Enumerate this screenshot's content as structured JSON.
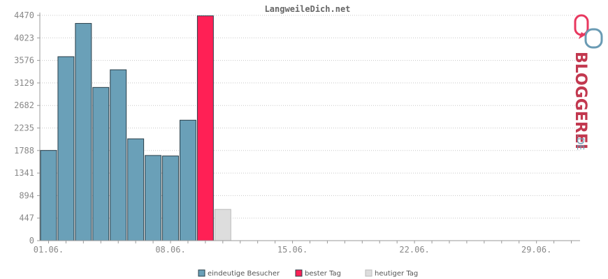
{
  "chart_data": {
    "type": "bar",
    "title": "LangweileDich.net",
    "ylim": [
      0,
      4470
    ],
    "yticks": [
      "0",
      "447",
      "894",
      "1341",
      "1788",
      "2235",
      "2682",
      "3129",
      "3576",
      "4023",
      "4470"
    ],
    "xtick_labels": [
      "01.06.",
      "08.06.",
      "15.06.",
      "22.06.",
      "29.06."
    ],
    "days": 31,
    "grid": true,
    "legend_placement": "bottom",
    "series": [
      {
        "name": "eindeutige Besucher",
        "color": "#6aa0b8",
        "points": [
          {
            "day": 1,
            "value": 1790
          },
          {
            "day": 2,
            "value": 3650
          },
          {
            "day": 3,
            "value": 4310
          },
          {
            "day": 4,
            "value": 3040
          },
          {
            "day": 5,
            "value": 3390
          },
          {
            "day": 6,
            "value": 2020
          },
          {
            "day": 7,
            "value": 1690
          },
          {
            "day": 8,
            "value": 1680
          },
          {
            "day": 9,
            "value": 2390
          }
        ]
      },
      {
        "name": "bester Tag",
        "color": "#ff2055",
        "points": [
          {
            "day": 10,
            "value": 4460
          }
        ]
      },
      {
        "name": "heutiger Tag",
        "color": "#dddddd",
        "points": [
          {
            "day": 11,
            "value": 620
          }
        ]
      }
    ]
  },
  "logo": {
    "brand": "BLOGGEREI",
    "tld": ".DE"
  }
}
